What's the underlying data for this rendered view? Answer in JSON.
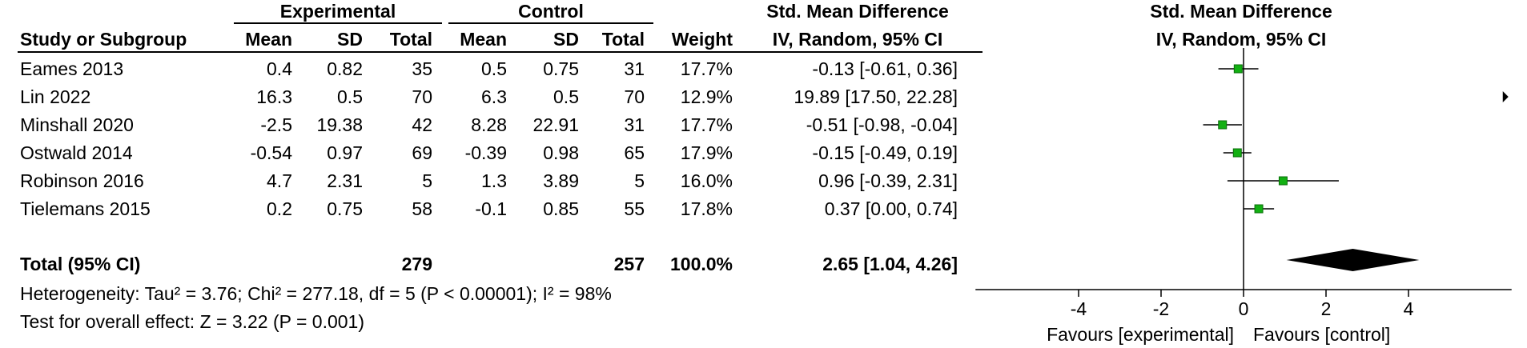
{
  "chart_data": {
    "type": "forest",
    "header": {
      "group_experimental": "Experimental",
      "group_control": "Control",
      "effect_title": "Std. Mean Difference",
      "plot_title": "Std. Mean Difference",
      "method": "IV, Random, 95% CI",
      "plot_method": "IV, Random, 95% CI",
      "columns": {
        "study": "Study or Subgroup",
        "mean": "Mean",
        "sd": "SD",
        "total": "Total",
        "weight": "Weight"
      }
    },
    "studies": [
      {
        "name": "Eames 2013",
        "e_mean": "0.4",
        "e_sd": "0.82",
        "e_total": "35",
        "c_mean": "0.5",
        "c_sd": "0.75",
        "c_total": "31",
        "weight": "17.7%",
        "ci_text": "-0.13 [-0.61, 0.36]",
        "est": -0.13,
        "lo": -0.61,
        "hi": 0.36
      },
      {
        "name": "Lin 2022",
        "e_mean": "16.3",
        "e_sd": "0.5",
        "e_total": "70",
        "c_mean": "6.3",
        "c_sd": "0.5",
        "c_total": "70",
        "weight": "12.9%",
        "ci_text": "19.89 [17.50, 22.28]",
        "est": 19.89,
        "lo": 17.5,
        "hi": 22.28
      },
      {
        "name": "Minshall 2020",
        "e_mean": "-2.5",
        "e_sd": "19.38",
        "e_total": "42",
        "c_mean": "8.28",
        "c_sd": "22.91",
        "c_total": "31",
        "weight": "17.7%",
        "ci_text": "-0.51 [-0.98, -0.04]",
        "est": -0.51,
        "lo": -0.98,
        "hi": -0.04
      },
      {
        "name": "Ostwald 2014",
        "e_mean": "-0.54",
        "e_sd": "0.97",
        "e_total": "69",
        "c_mean": "-0.39",
        "c_sd": "0.98",
        "c_total": "65",
        "weight": "17.9%",
        "ci_text": "-0.15 [-0.49, 0.19]",
        "est": -0.15,
        "lo": -0.49,
        "hi": 0.19
      },
      {
        "name": "Robinson 2016",
        "e_mean": "4.7",
        "e_sd": "2.31",
        "e_total": "5",
        "c_mean": "1.3",
        "c_sd": "3.89",
        "c_total": "5",
        "weight": "16.0%",
        "ci_text": "0.96 [-0.39, 2.31]",
        "est": 0.96,
        "lo": -0.39,
        "hi": 2.31
      },
      {
        "name": "Tielemans 2015",
        "e_mean": "0.2",
        "e_sd": "0.75",
        "e_total": "58",
        "c_mean": "-0.1",
        "c_sd": "0.85",
        "c_total": "55",
        "weight": "17.8%",
        "ci_text": "0.37 [0.00, 0.74]",
        "est": 0.37,
        "lo": 0.0,
        "hi": 0.74
      }
    ],
    "total": {
      "label": "Total (95% CI)",
      "e_total": "279",
      "c_total": "257",
      "weight": "100.0%",
      "ci_text": "2.65 [1.04, 4.26]",
      "est": 2.65,
      "lo": 1.04,
      "hi": 4.26
    },
    "heterogeneity": "Heterogeneity: Tau² = 3.76; Chi² = 277.18, df = 5 (P < 0.00001); I² = 98%",
    "overall_effect": "Test for overall effect: Z = 3.22 (P = 0.001)",
    "x_axis": {
      "ticks": [
        -4,
        -2,
        0,
        2,
        4
      ],
      "tick_labels": [
        "-4",
        "-2",
        "0",
        "2",
        "4"
      ],
      "xlim": [
        -6.5,
        6.5
      ],
      "label_left": "Favours [experimental]",
      "label_right": "Favours [control]"
    },
    "colors": {
      "marker": "#12b012",
      "marker_border": "#0a6e0a",
      "diamond": "#000000",
      "line": "#000000"
    }
  }
}
